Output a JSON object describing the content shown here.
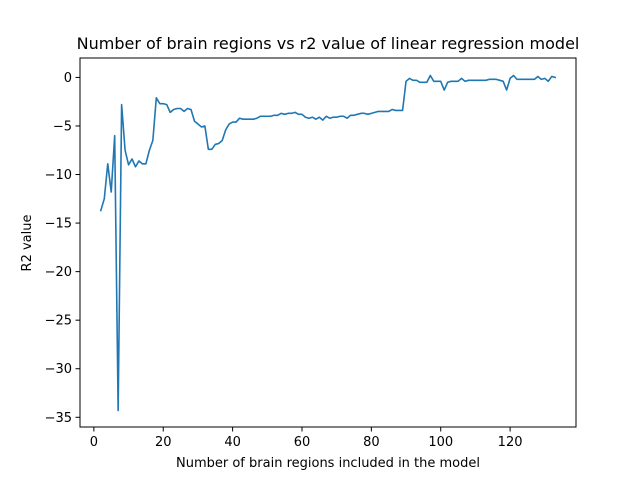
{
  "chart_data": {
    "type": "line",
    "title": "Number of brain regions vs r2 value of linear regression model",
    "xlabel": "Number of brain regions included in the model",
    "ylabel": "R2 value",
    "xlim": [
      -4,
      139
    ],
    "ylim": [
      -36,
      2
    ],
    "xticks": [
      0,
      20,
      40,
      60,
      80,
      100,
      120
    ],
    "xtick_labels": [
      "0",
      "20",
      "40",
      "60",
      "80",
      "100",
      "120"
    ],
    "yticks": [
      0,
      -5,
      -10,
      -15,
      -20,
      -25,
      -30,
      -35
    ],
    "ytick_labels": [
      "0",
      "−5",
      "−10",
      "−15",
      "−20",
      "−25",
      "−30",
      "−35"
    ],
    "grid": false,
    "series": [
      {
        "color": "#1f77b4",
        "x": [
          2,
          3,
          4,
          5,
          6,
          7,
          8,
          9,
          10,
          11,
          12,
          13,
          14,
          15,
          16,
          17,
          18,
          19,
          20,
          21,
          22,
          23,
          24,
          25,
          26,
          27,
          28,
          29,
          30,
          31,
          32,
          33,
          34,
          35,
          36,
          37,
          38,
          39,
          40,
          41,
          42,
          43,
          44,
          45,
          46,
          47,
          48,
          49,
          50,
          51,
          52,
          53,
          54,
          55,
          56,
          57,
          58,
          59,
          60,
          61,
          62,
          63,
          64,
          65,
          66,
          67,
          68,
          69,
          70,
          71,
          72,
          73,
          74,
          75,
          76,
          77,
          78,
          79,
          80,
          81,
          82,
          83,
          84,
          85,
          86,
          87,
          88,
          89,
          90,
          91,
          92,
          93,
          94,
          95,
          96,
          97,
          98,
          99,
          100,
          101,
          102,
          103,
          104,
          105,
          106,
          107,
          108,
          109,
          110,
          111,
          112,
          113,
          114,
          115,
          116,
          117,
          118,
          119,
          120,
          121,
          122,
          123,
          124,
          125,
          126,
          127,
          128,
          129,
          130,
          131,
          132,
          133
        ],
        "y": [
          -13.7,
          -12.5,
          -8.9,
          -11.8,
          -6.0,
          -34.3,
          -2.8,
          -7.5,
          -9.0,
          -8.4,
          -9.2,
          -8.6,
          -8.9,
          -8.9,
          -7.5,
          -6.5,
          -2.1,
          -2.7,
          -2.7,
          -2.8,
          -3.6,
          -3.3,
          -3.2,
          -3.2,
          -3.5,
          -3.2,
          -3.3,
          -4.5,
          -4.8,
          -5.1,
          -5.0,
          -7.4,
          -7.4,
          -6.9,
          -6.8,
          -6.5,
          -5.4,
          -4.8,
          -4.6,
          -4.6,
          -4.2,
          -4.3,
          -4.3,
          -4.3,
          -4.3,
          -4.2,
          -4.0,
          -4.0,
          -4.0,
          -4.0,
          -3.9,
          -3.9,
          -3.7,
          -3.8,
          -3.7,
          -3.7,
          -3.6,
          -3.8,
          -3.8,
          -4.1,
          -4.2,
          -4.1,
          -4.3,
          -4.1,
          -4.4,
          -4.0,
          -4.2,
          -4.1,
          -4.1,
          -4.0,
          -4.0,
          -4.2,
          -3.9,
          -3.9,
          -3.8,
          -3.7,
          -3.7,
          -3.8,
          -3.7,
          -3.6,
          -3.5,
          -3.5,
          -3.5,
          -3.5,
          -3.3,
          -3.4,
          -3.4,
          -3.4,
          -0.4,
          -0.1,
          -0.3,
          -0.3,
          -0.5,
          -0.5,
          -0.5,
          0.2,
          -0.4,
          -0.4,
          -0.4,
          -1.3,
          -0.5,
          -0.4,
          -0.4,
          -0.4,
          -0.1,
          -0.4,
          -0.3,
          -0.3,
          -0.3,
          -0.3,
          -0.3,
          -0.3,
          -0.2,
          -0.2,
          -0.2,
          -0.3,
          -0.4,
          -1.3,
          -0.1,
          0.2,
          -0.2,
          -0.2,
          -0.2,
          -0.2,
          -0.2,
          -0.2,
          0.1,
          -0.2,
          -0.1,
          -0.4,
          0.1,
          0.0
        ]
      }
    ]
  }
}
